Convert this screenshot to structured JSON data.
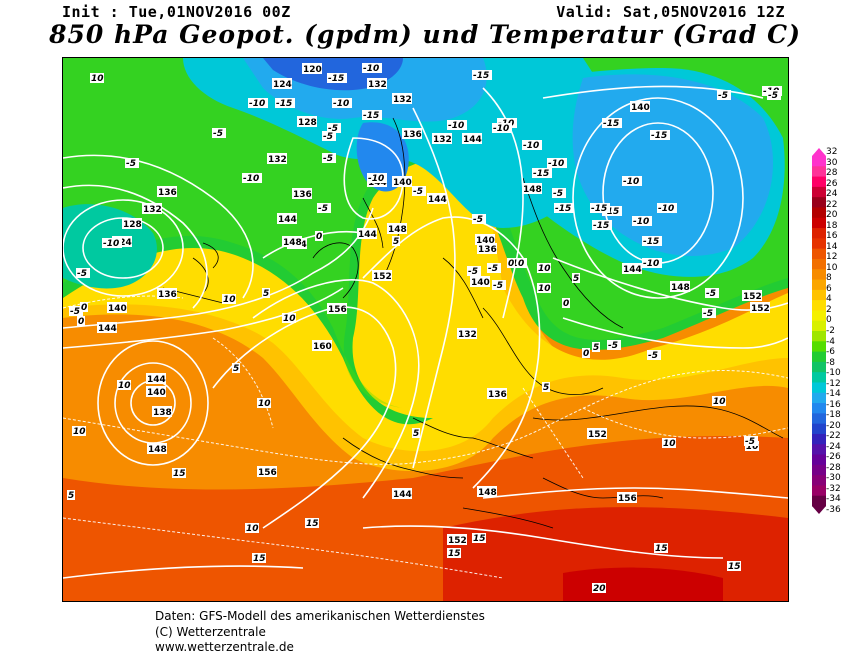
{
  "header": {
    "init_label": "Init : Tue,01NOV2016 00Z",
    "valid_label": "Valid: Sat,05NOV2016 12Z",
    "title": "850 hPa Geopot. (gpdm) und Temperatur (Grad C)"
  },
  "footer": {
    "line1": "Daten: GFS-Modell des amerikanischen Wetterdienstes",
    "line2": "(C) Wetterzentrale",
    "line3": "www.wetterzentrale.de"
  },
  "scale": {
    "labels": [
      "32",
      "30",
      "28",
      "26",
      "24",
      "22",
      "20",
      "18",
      "16",
      "14",
      "12",
      "10",
      "8",
      "6",
      "4",
      "2",
      "0",
      "-2",
      "-4",
      "-6",
      "-8",
      "-10",
      "-12",
      "-14",
      "-16",
      "-18",
      "-20",
      "-22",
      "-24",
      "-26",
      "-28",
      "-30",
      "-32",
      "-34",
      "-36"
    ],
    "colors": [
      "#ff33cc",
      "#ff3399",
      "#ff0066",
      "#cc0033",
      "#99001a",
      "#b30000",
      "#cc0000",
      "#dd2200",
      "#e63300",
      "#ee5500",
      "#f26f00",
      "#f78c00",
      "#fba600",
      "#ffc200",
      "#ffdd00",
      "#f5f000",
      "#d8f000",
      "#9fe600",
      "#55dd00",
      "#22cc33",
      "#11c466",
      "#00c9a0",
      "#00c8d8",
      "#22aaee",
      "#2288ee",
      "#2266dd",
      "#2244cc",
      "#3322bb",
      "#5511aa",
      "#660099",
      "#770088",
      "#880077",
      "#990066",
      "#660044"
    ]
  },
  "map": {
    "geopotential_labels": [
      {
        "text": "120"
      },
      {
        "text": "124"
      },
      {
        "text": "132"
      },
      {
        "text": "132"
      },
      {
        "text": "128"
      },
      {
        "text": "132"
      },
      {
        "text": "136"
      },
      {
        "text": "136"
      },
      {
        "text": "136"
      },
      {
        "text": "144"
      },
      {
        "text": "140"
      },
      {
        "text": "144"
      },
      {
        "text": "144"
      },
      {
        "text": "148"
      },
      {
        "text": "144"
      },
      {
        "text": "148"
      },
      {
        "text": "152"
      },
      {
        "text": "156"
      },
      {
        "text": "160"
      },
      {
        "text": "140"
      },
      {
        "text": "144"
      },
      {
        "text": "132"
      },
      {
        "text": "128"
      },
      {
        "text": "124"
      },
      {
        "text": "136"
      },
      {
        "text": "140"
      },
      {
        "text": "144"
      },
      {
        "text": "144"
      },
      {
        "text": "140"
      },
      {
        "text": "138"
      },
      {
        "text": "148"
      },
      {
        "text": "156"
      },
      {
        "text": "152"
      },
      {
        "text": "144"
      },
      {
        "text": "148"
      },
      {
        "text": "152"
      },
      {
        "text": "156"
      },
      {
        "text": "136"
      },
      {
        "text": "132"
      },
      {
        "text": "140"
      },
      {
        "text": "136"
      },
      {
        "text": "148"
      },
      {
        "text": "144"
      },
      {
        "text": "140"
      },
      {
        "text": "144"
      },
      {
        "text": "148"
      },
      {
        "text": "152"
      },
      {
        "text": "152"
      },
      {
        "text": "132"
      }
    ],
    "temperature_labels": [
      {
        "text": "10"
      },
      {
        "text": "-15"
      },
      {
        "text": "-10"
      },
      {
        "text": "-15"
      },
      {
        "text": "-10"
      },
      {
        "text": "-5"
      },
      {
        "text": "-10"
      },
      {
        "text": "-5"
      },
      {
        "text": "-5"
      },
      {
        "text": "-10"
      },
      {
        "text": "-15"
      },
      {
        "text": "-10"
      },
      {
        "text": "-10"
      },
      {
        "text": "-15"
      },
      {
        "text": "-10"
      },
      {
        "text": "-5"
      },
      {
        "text": "-10"
      },
      {
        "text": "-5"
      },
      {
        "text": "-15"
      },
      {
        "text": "-10"
      },
      {
        "text": "-10"
      },
      {
        "text": "-15"
      },
      {
        "text": "-10"
      },
      {
        "text": "-5"
      },
      {
        "text": "-10"
      },
      {
        "text": "-5"
      },
      {
        "text": "-5"
      },
      {
        "text": "-10"
      },
      {
        "text": "-15"
      },
      {
        "text": "-5"
      },
      {
        "text": "-10"
      },
      {
        "text": "-5"
      },
      {
        "text": "-15"
      },
      {
        "text": "-5"
      },
      {
        "text": "-5"
      },
      {
        "text": "-15"
      },
      {
        "text": "-15"
      },
      {
        "text": "-15"
      },
      {
        "text": "-15"
      },
      {
        "text": "-10"
      },
      {
        "text": "-10"
      },
      {
        "text": "-10"
      },
      {
        "text": "-5"
      },
      {
        "text": "-5"
      },
      {
        "text": "-5"
      },
      {
        "text": "-5"
      },
      {
        "text": "0"
      },
      {
        "text": "0"
      },
      {
        "text": "0"
      },
      {
        "text": "5"
      },
      {
        "text": "5"
      },
      {
        "text": "5"
      },
      {
        "text": "10"
      },
      {
        "text": "10"
      },
      {
        "text": "10"
      },
      {
        "text": "10"
      },
      {
        "text": "10"
      },
      {
        "text": "10"
      },
      {
        "text": "10"
      },
      {
        "text": "10"
      },
      {
        "text": "15"
      },
      {
        "text": "15"
      },
      {
        "text": "15"
      },
      {
        "text": "15"
      },
      {
        "text": "15"
      },
      {
        "text": "15"
      },
      {
        "text": "15"
      },
      {
        "text": "20"
      },
      {
        "text": "5"
      },
      {
        "text": "10"
      },
      {
        "text": "10"
      },
      {
        "text": "5"
      },
      {
        "text": "0"
      },
      {
        "text": "-5"
      },
      {
        "text": "5"
      },
      {
        "text": "0"
      },
      {
        "text": "5"
      },
      {
        "text": "0"
      },
      {
        "text": "-5"
      },
      {
        "text": "5"
      },
      {
        "text": "10"
      },
      {
        "text": "-5"
      },
      {
        "text": "-5"
      },
      {
        "text": "-5"
      }
    ]
  }
}
